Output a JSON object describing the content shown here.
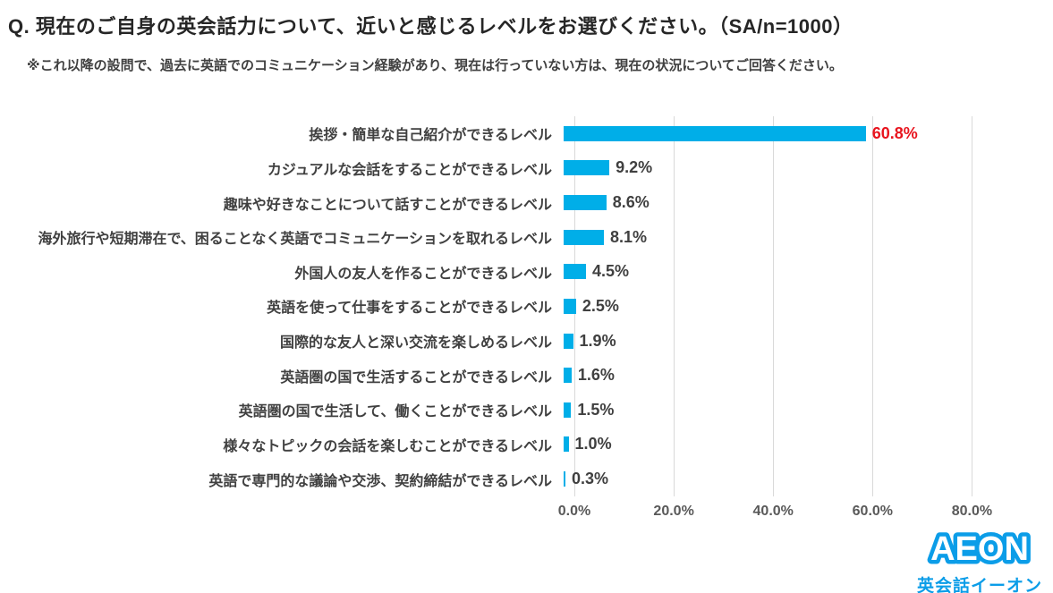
{
  "header": {
    "title": "Q. 現在のご自身の英会話力について、近いと感じるレベルをお選びください。（SA/n=1000）",
    "note": "※これ以降の設問で、過去に英語でのコミュニケーション経験があり、現在は行っていない方は、現在の状況についてご回答ください。"
  },
  "chart_data": {
    "type": "bar",
    "orientation": "horizontal",
    "categories": [
      "挨拶・簡単な自己紹介ができるレベル",
      "カジュアルな会話をすることができるレベル",
      "趣味や好きなことについて話すことができるレベル",
      "海外旅行や短期滞在で、困ることなく英語でコミュニケーションを取れるレベル",
      "外国人の友人を作ることができるレベル",
      "英語を使って仕事をすることができるレベル",
      "国際的な友人と深い交流を楽しめるレベル",
      "英語圏の国で生活することができるレベル",
      "英語圏の国で生活して、働くことができるレベル",
      "様々なトピックの会話を楽しむことができるレベル",
      "英語で専門的な議論や交渉、契約締結ができるレベル"
    ],
    "values": [
      60.8,
      9.2,
      8.6,
      8.1,
      4.5,
      2.5,
      1.9,
      1.6,
      1.5,
      1.0,
      0.3
    ],
    "value_labels": [
      "60.8%",
      "9.2%",
      "8.6%",
      "8.1%",
      "4.5%",
      "2.5%",
      "1.9%",
      "1.6%",
      "1.5%",
      "1.0%",
      "0.3%"
    ],
    "x_tick_values": [
      0,
      20,
      40,
      60,
      80
    ],
    "x_tick_labels": [
      "0.0%",
      "20.0%",
      "40.0%",
      "60.0%",
      "80.0%"
    ],
    "xlim": [
      0,
      90
    ],
    "grid": "vertical-only",
    "legend": "none",
    "bar_color": "#00aee8",
    "gridline_color": "#d9d9d9",
    "value_label_color": "#404040",
    "highlight_index": 0,
    "highlight_color": "#e8141e"
  },
  "logo": {
    "brand": "AEON",
    "subtitle": "英会話イーオン",
    "color": "#0b9de8"
  }
}
